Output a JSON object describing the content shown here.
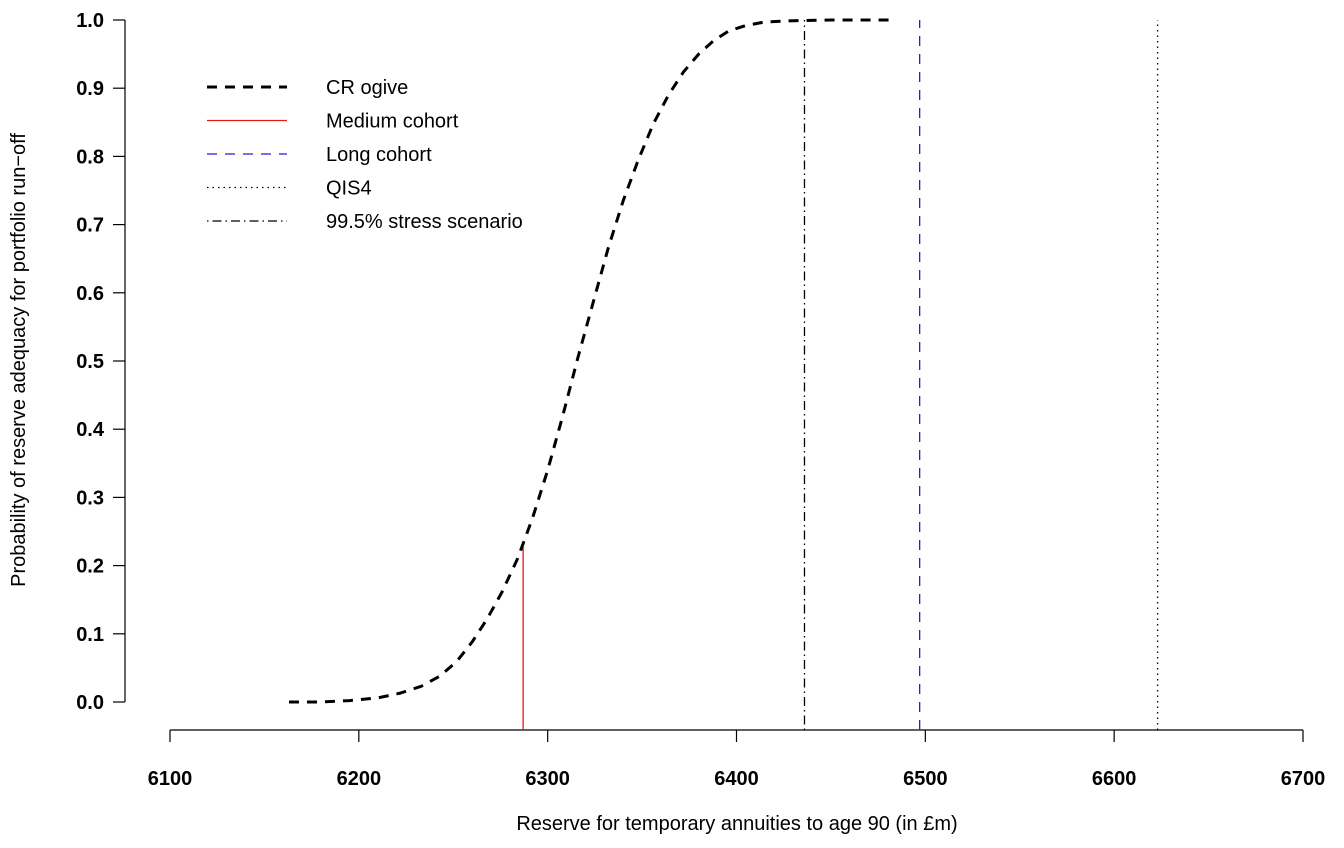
{
  "chart_data": {
    "type": "line",
    "title": "",
    "xlabel": "Reserve for temporary annuities to age 90 (in £m)",
    "ylabel": "Probability of reserve adequacy for portfolio run−off",
    "xlim": [
      6100,
      6700
    ],
    "ylim": [
      0.0,
      1.0
    ],
    "x_ticks": [
      6100,
      6200,
      6300,
      6400,
      6500,
      6600,
      6700
    ],
    "x_tick_labels": [
      "6100",
      "6200",
      "6300",
      "6400",
      "6500",
      "6600",
      "6700"
    ],
    "y_ticks": [
      0.0,
      0.1,
      0.2,
      0.3,
      0.4,
      0.5,
      0.6,
      0.7,
      0.8,
      0.9,
      1.0
    ],
    "y_tick_labels": [
      "0.0",
      "0.1",
      "0.2",
      "0.3",
      "0.4",
      "0.5",
      "0.6",
      "0.7",
      "0.8",
      "0.9",
      "1.0"
    ],
    "grid": false,
    "legend_position": "top-left",
    "series": [
      {
        "name": "CR ogive",
        "style": "dashed",
        "color": "#000000",
        "x": [
          6163,
          6180,
          6195,
          6210,
          6222,
          6233,
          6243,
          6252,
          6260,
          6268,
          6276,
          6284,
          6292,
          6300,
          6308,
          6316,
          6324,
          6332,
          6340,
          6348,
          6356,
          6364,
          6372,
          6380,
          6388,
          6396,
          6405,
          6415,
          6430,
          6450,
          6482
        ],
        "y": [
          0.0,
          0.0,
          0.002,
          0.006,
          0.013,
          0.023,
          0.038,
          0.06,
          0.088,
          0.122,
          0.162,
          0.21,
          0.27,
          0.34,
          0.42,
          0.505,
          0.585,
          0.665,
          0.735,
          0.795,
          0.848,
          0.89,
          0.924,
          0.95,
          0.97,
          0.984,
          0.992,
          0.997,
          0.999,
          1.0,
          1.0
        ]
      }
    ],
    "vertical_lines": [
      {
        "name": "Medium cohort",
        "x": 6287,
        "y_top": 0.23,
        "style": "solid",
        "color": "#e31a1c"
      },
      {
        "name": "Long cohort",
        "x": 6497,
        "y_top": 1.0,
        "style": "dashed",
        "color": "#1f1fdd"
      },
      {
        "name": "QIS4",
        "x": 6623,
        "y_top": 1.0,
        "style": "dotted",
        "color": "#000000"
      },
      {
        "name": "99.5% stress scenario",
        "x": 6436,
        "y_top": 1.0,
        "style": "dotdash",
        "color": "#000000"
      }
    ],
    "legend": [
      {
        "label": "CR ogive",
        "style": "dashed",
        "color": "#000000"
      },
      {
        "label": "Medium cohort",
        "style": "solid",
        "color": "#e31a1c"
      },
      {
        "label": "Long cohort",
        "style": "dashed",
        "color": "#1f1fdd"
      },
      {
        "label": "QIS4",
        "style": "dotted",
        "color": "#000000"
      },
      {
        "label": "99.5% stress scenario",
        "style": "dotdash",
        "color": "#000000"
      }
    ]
  }
}
